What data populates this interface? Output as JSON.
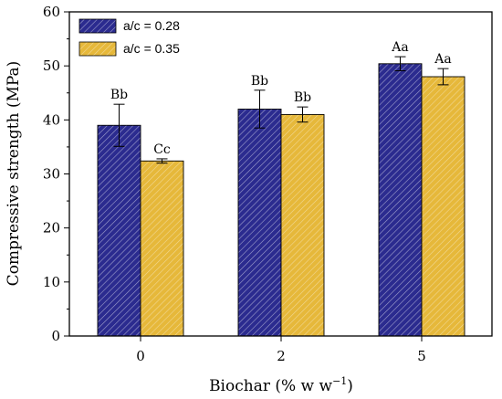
{
  "chart_data": {
    "type": "bar",
    "xlabel": "Biochar (% w w",
    "xlabel_superscript": "−1",
    "xlabel_suffix": ")",
    "ylabel": "Compressive strength (MPa)",
    "categories": [
      "0",
      "2",
      "5"
    ],
    "ylim": [
      0,
      60
    ],
    "yticks": [
      "0",
      "10",
      "20",
      "30",
      "40",
      "50",
      "60"
    ],
    "grid": false,
    "legend_position": "top-left",
    "series": [
      {
        "name": "a/c = 0.28",
        "color": "#2b2b8f",
        "values": [
          39.0,
          42.0,
          50.4
        ],
        "errors": [
          3.9,
          3.5,
          1.3
        ],
        "labels": [
          "Bb",
          "Bb",
          "Aa"
        ]
      },
      {
        "name": "a/c = 0.35",
        "color": "#e6b83a",
        "values": [
          32.4,
          41.0,
          48.0
        ],
        "errors": [
          0.4,
          1.4,
          1.5
        ],
        "labels": [
          "Cc",
          "Bb",
          "Aa"
        ]
      }
    ]
  }
}
